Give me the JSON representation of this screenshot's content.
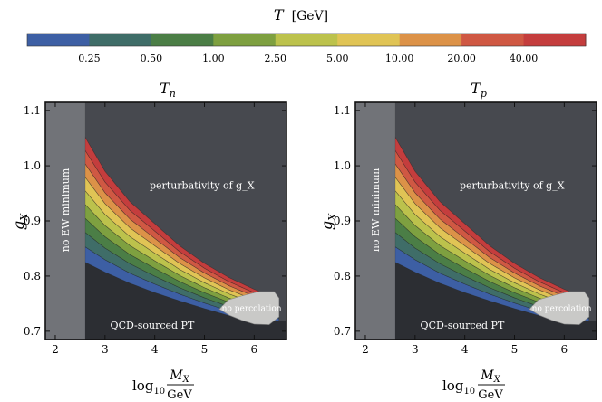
{
  "colorbar": {
    "title_var": "T",
    "title_unit": "[GeV]",
    "tick_labels": [
      "0.25",
      "0.50",
      "1.00",
      "2.50",
      "5.00",
      "10.00",
      "20.00",
      "40.00"
    ],
    "colors": [
      "#3d5fa4",
      "#3f6d68",
      "#4b7e46",
      "#7ea040",
      "#bcc24c",
      "#e0c455",
      "#dc9248",
      "#cf5843",
      "#c43d3d"
    ]
  },
  "chart_data": [
    {
      "type": "heatmap",
      "title": "T_n",
      "title_base": "T",
      "title_sub": "n",
      "xlabel": "log10 M_X / GeV",
      "ylabel": "g_X",
      "xlim": [
        1.8,
        6.65
      ],
      "ylim": [
        0.685,
        1.115
      ],
      "xticks": [
        2,
        3,
        4,
        5,
        6
      ],
      "yticks": [
        0.7,
        0.8,
        0.9,
        1.0,
        1.1
      ],
      "levels_GeV": [
        0.25,
        0.5,
        1.0,
        2.5,
        5.0,
        10.0,
        20.0,
        40.0
      ],
      "region_labels": {
        "no_ew_minimum": "no EW minimum",
        "perturbativity": "perturbativity of g_X",
        "qcd": "QCD-sourced PT",
        "no_percolation": "no percolation"
      },
      "regions": {
        "no_ew_minimum_x_max": 2.6,
        "upper_boundary": [
          [
            2.6,
            1.052
          ],
          [
            3.0,
            0.99
          ],
          [
            3.5,
            0.935
          ],
          [
            4.0,
            0.895
          ],
          [
            4.5,
            0.855
          ],
          [
            5.0,
            0.823
          ],
          [
            5.5,
            0.797
          ],
          [
            6.0,
            0.776
          ],
          [
            6.5,
            0.758
          ]
        ],
        "lower_boundary": [
          [
            2.6,
            0.825
          ],
          [
            3.0,
            0.807
          ],
          [
            3.5,
            0.787
          ],
          [
            4.0,
            0.77
          ],
          [
            4.5,
            0.755
          ],
          [
            5.0,
            0.741
          ],
          [
            5.5,
            0.728
          ],
          [
            5.9,
            0.719
          ]
        ],
        "no_percolation": [
          [
            5.3,
            0.74
          ],
          [
            5.48,
            0.757
          ],
          [
            5.75,
            0.764
          ],
          [
            6.1,
            0.772
          ],
          [
            6.4,
            0.772
          ],
          [
            6.5,
            0.76
          ],
          [
            6.5,
            0.726
          ],
          [
            6.3,
            0.712
          ],
          [
            6.0,
            0.713
          ],
          [
            5.75,
            0.72
          ],
          [
            5.5,
            0.729
          ]
        ]
      }
    },
    {
      "type": "heatmap",
      "title": "T_p",
      "title_base": "T",
      "title_sub": "p",
      "xlabel": "log10 M_X / GeV",
      "ylabel": "g_X",
      "xlim": [
        1.8,
        6.65
      ],
      "ylim": [
        0.685,
        1.115
      ],
      "xticks": [
        2,
        3,
        4,
        5,
        6
      ],
      "yticks": [
        0.7,
        0.8,
        0.9,
        1.0,
        1.1
      ],
      "levels_GeV": [
        0.25,
        0.5,
        1.0,
        2.5,
        5.0,
        10.0,
        20.0,
        40.0
      ],
      "region_labels": {
        "no_ew_minimum": "no EW minimum",
        "perturbativity": "perturbativity of g_X",
        "qcd": "QCD-sourced PT",
        "no_percolation": "no percolation"
      },
      "regions": {
        "no_ew_minimum_x_max": 2.6,
        "upper_boundary": [
          [
            2.6,
            1.052
          ],
          [
            3.0,
            0.99
          ],
          [
            3.5,
            0.935
          ],
          [
            4.0,
            0.895
          ],
          [
            4.5,
            0.855
          ],
          [
            5.0,
            0.823
          ],
          [
            5.5,
            0.797
          ],
          [
            6.0,
            0.776
          ],
          [
            6.5,
            0.758
          ]
        ],
        "lower_boundary": [
          [
            2.6,
            0.825
          ],
          [
            3.0,
            0.807
          ],
          [
            3.5,
            0.787
          ],
          [
            4.0,
            0.77
          ],
          [
            4.5,
            0.755
          ],
          [
            5.0,
            0.741
          ],
          [
            5.5,
            0.728
          ],
          [
            5.9,
            0.719
          ]
        ],
        "no_percolation": [
          [
            5.3,
            0.74
          ],
          [
            5.48,
            0.757
          ],
          [
            5.75,
            0.764
          ],
          [
            6.1,
            0.772
          ],
          [
            6.4,
            0.772
          ],
          [
            6.5,
            0.76
          ],
          [
            6.5,
            0.726
          ],
          [
            6.3,
            0.712
          ],
          [
            6.0,
            0.713
          ],
          [
            5.75,
            0.72
          ],
          [
            5.5,
            0.729
          ]
        ]
      }
    }
  ]
}
